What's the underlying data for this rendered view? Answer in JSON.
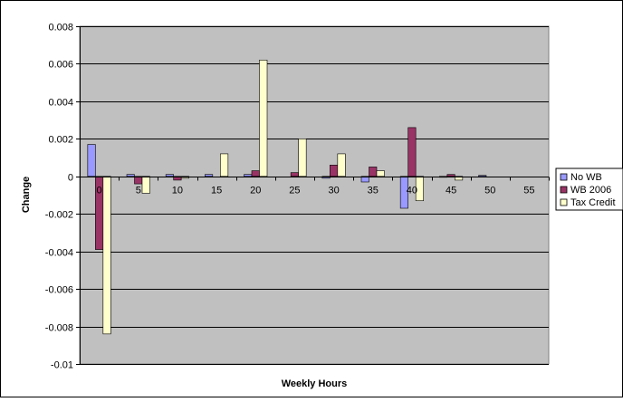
{
  "chart_data": {
    "type": "bar",
    "xlabel": "Weekly Hours",
    "ylabel": "Change",
    "ylim": [
      -0.01,
      0.008
    ],
    "ytick_values": [
      0.008,
      0.006,
      0.004,
      0.002,
      0,
      -0.002,
      -0.004,
      -0.006,
      -0.008,
      -0.01
    ],
    "ytick_labels": [
      "0.008",
      "0.006",
      "0.004",
      "0.002",
      "0",
      "-0.002",
      "-0.004",
      "-0.006",
      "-0.008",
      "-0.01"
    ],
    "categories": [
      "0",
      "5",
      "10",
      "15",
      "20",
      "25",
      "30",
      "35",
      "40",
      "45",
      "50",
      "55"
    ],
    "grid": "horizontal",
    "legend_position": "right",
    "series": [
      {
        "name": "No WB",
        "color": "#9999ff",
        "values": [
          0.0017,
          0.0001,
          0.0001,
          0.0001,
          0.0001,
          0,
          -0.0001,
          -0.0003,
          -0.0017,
          -5e-05,
          5e-05,
          0
        ]
      },
      {
        "name": "WB 2006",
        "color": "#993366",
        "values": [
          -0.0039,
          -0.0004,
          -0.0002,
          0,
          0.0003,
          0.0002,
          0.0006,
          0.0005,
          0.0026,
          0.0001,
          0,
          0
        ]
      },
      {
        "name": "Tax Credit",
        "color": "#ffffcc",
        "values": [
          -0.0084,
          -0.0009,
          -0.0001,
          0.0012,
          0.0062,
          0.002,
          0.0012,
          0.0003,
          -0.0013,
          -0.0002,
          0,
          0
        ]
      }
    ],
    "plot_background": "#c0c0c0"
  }
}
